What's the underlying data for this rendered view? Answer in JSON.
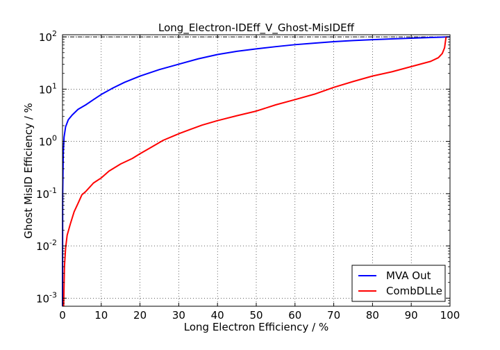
{
  "chart_data": {
    "type": "line",
    "title": "Long_Electron-IDEff_V_Ghost-MisIDEff",
    "xlabel": "Long Electron Efficiency / %",
    "ylabel": "Ghost MisID Efficiency / %",
    "xlim": [
      0,
      100
    ],
    "ylim": [
      0.0007,
      110
    ],
    "yscale": "log",
    "grid": true,
    "legend": "bottom-right",
    "x_ticks": [
      0,
      10,
      20,
      30,
      40,
      50,
      60,
      70,
      80,
      90,
      100
    ],
    "x_tick_labels": [
      "0",
      "10",
      "20",
      "30",
      "40",
      "50",
      "60",
      "70",
      "80",
      "90",
      "100"
    ],
    "y_ticks": [
      0.001,
      0.01,
      0.1,
      1,
      10,
      100
    ],
    "y_tick_labels": [
      {
        "base": "10",
        "exp": "-3"
      },
      {
        "base": "10",
        "exp": "-2"
      },
      {
        "base": "10",
        "exp": "-1"
      },
      {
        "base": "10",
        "exp": "0"
      },
      {
        "base": "10",
        "exp": "1"
      },
      {
        "base": "10",
        "exp": "2"
      }
    ],
    "series": [
      {
        "name": "MVA Out",
        "color": "#0000ff",
        "points": [
          [
            0,
            0.0007
          ],
          [
            0.05,
            0.1
          ],
          [
            0.2,
            0.6
          ],
          [
            0.4,
            1.2
          ],
          [
            0.8,
            1.9
          ],
          [
            1.5,
            2.6
          ],
          [
            2.5,
            3.2
          ],
          [
            4,
            4.1
          ],
          [
            6,
            5.0
          ],
          [
            8,
            6.3
          ],
          [
            10,
            7.9
          ],
          [
            13,
            10.5
          ],
          [
            16,
            13.5
          ],
          [
            20,
            17.8
          ],
          [
            25,
            23.7
          ],
          [
            30,
            30.0
          ],
          [
            35,
            38.0
          ],
          [
            40,
            46.0
          ],
          [
            45,
            53.0
          ],
          [
            50,
            59.0
          ],
          [
            55,
            65.0
          ],
          [
            60,
            71.0
          ],
          [
            65,
            76.0
          ],
          [
            70,
            81.0
          ],
          [
            75,
            85.0
          ],
          [
            80,
            88.5
          ],
          [
            85,
            91.5
          ],
          [
            90,
            94.5
          ],
          [
            95,
            97.5
          ],
          [
            99,
            99.5
          ],
          [
            100,
            100.0
          ]
        ]
      },
      {
        "name": "CombDLLe",
        "color": "#ff0000",
        "points": [
          [
            0.3,
            0.0007
          ],
          [
            0.5,
            0.004
          ],
          [
            0.8,
            0.009
          ],
          [
            1.2,
            0.016
          ],
          [
            2,
            0.026
          ],
          [
            3,
            0.045
          ],
          [
            4,
            0.065
          ],
          [
            5,
            0.095
          ],
          [
            6,
            0.11
          ],
          [
            8,
            0.16
          ],
          [
            10,
            0.2
          ],
          [
            12,
            0.27
          ],
          [
            15,
            0.37
          ],
          [
            18,
            0.47
          ],
          [
            20,
            0.58
          ],
          [
            23,
            0.78
          ],
          [
            26,
            1.05
          ],
          [
            30,
            1.4
          ],
          [
            33,
            1.7
          ],
          [
            36,
            2.05
          ],
          [
            40,
            2.5
          ],
          [
            45,
            3.1
          ],
          [
            50,
            3.8
          ],
          [
            55,
            5.0
          ],
          [
            60,
            6.3
          ],
          [
            65,
            8.0
          ],
          [
            70,
            10.8
          ],
          [
            75,
            14.0
          ],
          [
            80,
            17.8
          ],
          [
            85,
            21.5
          ],
          [
            90,
            27.0
          ],
          [
            93,
            31.0
          ],
          [
            95,
            34.0
          ],
          [
            97,
            40.0
          ],
          [
            98,
            48.0
          ],
          [
            98.6,
            62.0
          ],
          [
            98.9,
            90.0
          ],
          [
            99,
            100.0
          ]
        ]
      }
    ],
    "reference_line": {
      "y": 100,
      "style": "dash-dot",
      "color": "#000000"
    }
  }
}
